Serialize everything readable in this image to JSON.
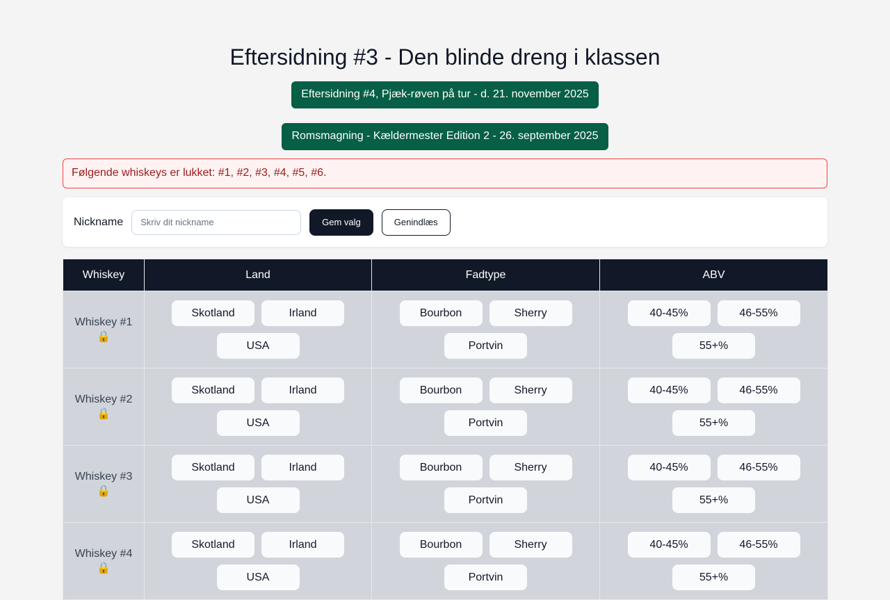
{
  "title": "Eftersidning #3 - Den blinde dreng i klassen",
  "links": [
    "Eftersidning #4, Pjæk-røven på tur - d. 21. november 2025",
    "Romsmagning - Kældermester Edition 2 - 26. september 2025"
  ],
  "alert": "Følgende whiskeys er lukket: #1, #2, #3, #4, #5, #6.",
  "form": {
    "label": "Nickname",
    "placeholder": "Skriv dit nickname",
    "save": "Gem valg",
    "reload": "Genindlæs"
  },
  "table": {
    "headers": [
      "Whiskey",
      "Land",
      "Fadtype",
      "ABV"
    ],
    "land": [
      "Skotland",
      "Irland",
      "USA"
    ],
    "fad": [
      "Bourbon",
      "Sherry",
      "Portvin"
    ],
    "abv": [
      "40-45%",
      "46-55%",
      "55+%"
    ],
    "lock_icon": "🔒",
    "rows": [
      "Whiskey #1",
      "Whiskey #2",
      "Whiskey #3",
      "Whiskey #4"
    ]
  },
  "colors": {
    "accent": "#065f46",
    "dark": "#111827",
    "alert": "#ef4444"
  }
}
